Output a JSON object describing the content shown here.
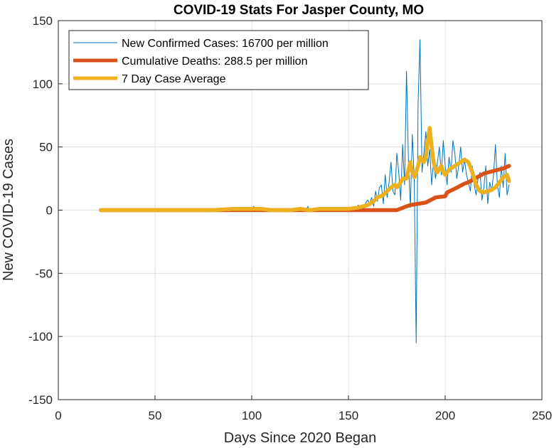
{
  "chart_data": {
    "type": "line",
    "title": "COVID-19 Stats For Jasper County, MO",
    "xlabel": "Days Since 2020 Began",
    "ylabel": "New COVID-19 Cases",
    "xlim": [
      0,
      250
    ],
    "ylim": [
      -150,
      150
    ],
    "xticks": [
      0,
      50,
      100,
      150,
      200,
      250
    ],
    "yticks": [
      -150,
      -100,
      -50,
      0,
      50,
      100,
      150
    ],
    "grid": true,
    "legend_position": "top-left",
    "series": [
      {
        "name": "New Confirmed Cases: 16700 per million",
        "color": "#0072BD",
        "width": "thin",
        "x": [
          22,
          60,
          80,
          90,
          95,
          97,
          100,
          101,
          102,
          103,
          105,
          108,
          110,
          115,
          120,
          125,
          128,
          129,
          130,
          131,
          135,
          140,
          145,
          148,
          150,
          152,
          153,
          154,
          155,
          156,
          157,
          158,
          159,
          160,
          161,
          162,
          163,
          164,
          165,
          166,
          167,
          168,
          169,
          170,
          171,
          172,
          173,
          174,
          175,
          176,
          177,
          178,
          179,
          180,
          181,
          182,
          183,
          184,
          185,
          186,
          187,
          188,
          189,
          190,
          191,
          192,
          193,
          194,
          195,
          196,
          197,
          198,
          199,
          200,
          201,
          202,
          203,
          204,
          205,
          206,
          207,
          208,
          209,
          210,
          211,
          212,
          213,
          214,
          215,
          216,
          217,
          218,
          219,
          220,
          221,
          222,
          223,
          224,
          225,
          226,
          227,
          228,
          229,
          230,
          231,
          232,
          233
        ],
        "y": [
          0,
          0,
          0,
          1,
          0,
          2,
          1,
          3,
          0,
          1,
          2,
          0,
          1,
          0,
          0,
          1,
          0,
          3,
          0,
          1,
          0,
          0,
          1,
          0,
          1,
          0,
          2,
          1,
          4,
          3,
          2,
          1,
          6,
          8,
          5,
          10,
          3,
          15,
          7,
          18,
          20,
          5,
          28,
          10,
          22,
          38,
          15,
          12,
          45,
          30,
          8,
          52,
          20,
          110,
          40,
          2,
          60,
          25,
          -105,
          85,
          135,
          30,
          45,
          62,
          35,
          48,
          20,
          40,
          25,
          38,
          50,
          28,
          55,
          35,
          20,
          42,
          30,
          55,
          45,
          25,
          35,
          50,
          30,
          40,
          28,
          22,
          15,
          35,
          20,
          12,
          25,
          30,
          8,
          18,
          35,
          5,
          22,
          15,
          28,
          52,
          20,
          10,
          35,
          18,
          45,
          12,
          20
        ]
      },
      {
        "name": "Cumulative Deaths: 288.5 per million",
        "color": "#D95319",
        "width": "thick",
        "x": [
          22,
          150,
          175,
          180,
          182,
          190,
          195,
          200,
          201,
          205,
          210,
          212,
          220,
          225,
          230,
          233
        ],
        "y": [
          0,
          0,
          0,
          3,
          4,
          6,
          10,
          11,
          14,
          17,
          21,
          22,
          29,
          31,
          33,
          35
        ]
      },
      {
        "name": "7 Day Case Average",
        "color": "#EDB120",
        "width": "thick",
        "x": [
          22,
          80,
          90,
          95,
          100,
          105,
          110,
          115,
          120,
          125,
          130,
          135,
          140,
          145,
          150,
          155,
          160,
          163,
          165,
          168,
          170,
          172,
          174,
          175,
          177,
          178,
          180,
          181,
          182,
          183,
          184,
          185,
          186,
          187,
          188,
          189,
          190,
          191,
          192,
          193,
          194,
          195,
          196,
          197,
          198,
          199,
          200,
          201,
          202,
          204,
          206,
          208,
          210,
          212,
          214,
          216,
          218,
          220,
          222,
          224,
          226,
          228,
          230,
          232,
          233
        ],
        "y": [
          0,
          0,
          1,
          1,
          1,
          1,
          0,
          0,
          0,
          1,
          0,
          1,
          1,
          1,
          1,
          2,
          4,
          7,
          10,
          12,
          15,
          18,
          20,
          18,
          22,
          25,
          25,
          32,
          38,
          30,
          26,
          30,
          35,
          42,
          40,
          38,
          42,
          55,
          65,
          50,
          38,
          32,
          30,
          33,
          35,
          30,
          28,
          30,
          32,
          34,
          36,
          38,
          40,
          38,
          30,
          20,
          15,
          14,
          15,
          16,
          18,
          22,
          26,
          28,
          23
        ]
      }
    ]
  }
}
